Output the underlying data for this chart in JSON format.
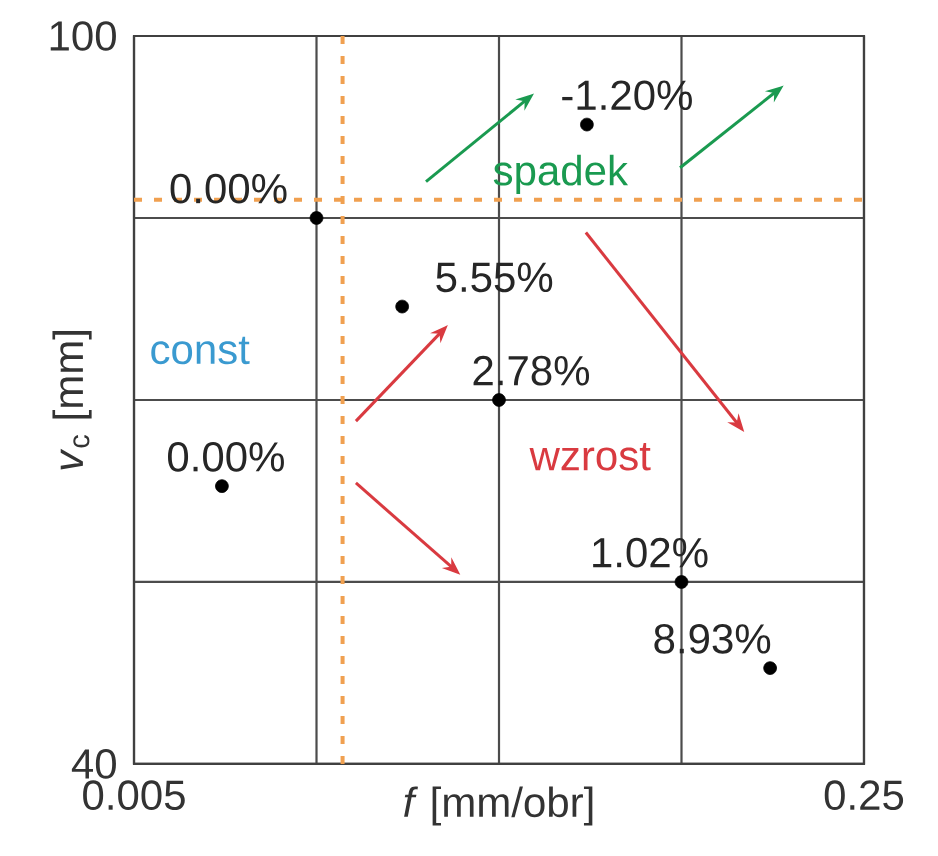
{
  "chart_data": {
    "type": "scatter",
    "xlabel": "*f* [mm/obr]",
    "ylabel": "*v*$_{c}$ [mm]",
    "xlim": [
      0.005,
      0.25
    ],
    "ylim": [
      40,
      100
    ],
    "xticks": [
      0.005,
      {
        "value": 0.06625,
        "label": null
      },
      {
        "value": 0.1275,
        "label": null
      },
      {
        "value": 0.18875,
        "label": null
      },
      0.25
    ],
    "yticks": [
      40,
      {
        "value": 55,
        "label": null
      },
      {
        "value": 70,
        "label": null
      },
      {
        "value": 85,
        "label": null
      },
      100
    ],
    "grid": true,
    "marker": "circle",
    "series": [
      {
        "color": "#000000",
        "x": [
          0.0345,
          0.06625,
          0.095,
          0.1275,
          0.157,
          0.18875,
          0.2185
        ],
        "values": [
          62.9,
          85,
          77.7,
          70,
          92.7,
          55,
          47.9
        ]
      }
    ],
    "ref_lines": [
      {
        "axis": "x",
        "value": 0.075,
        "color": "#f0a050",
        "line_style": "dashed"
      },
      {
        "axis": "y",
        "value": 86.5,
        "color": "#f0a050",
        "line_style": "dashed"
      }
    ],
    "annotations": [
      "const",
      "spadek",
      "wzrost",
      {
        "text": "0.00%",
        "x": 0.0345,
        "y": 62.9
      },
      {
        "text": "0.00%",
        "x": 0.06625,
        "y": 85
      },
      {
        "text": "5.55%",
        "x": 0.095,
        "y": 77.7
      },
      {
        "text": "2.78%",
        "x": 0.1275,
        "y": 70
      },
      {
        "text": "-1.20%",
        "x": 0.157,
        "y": 92.7
      },
      {
        "text": "1.02%",
        "x": 0.18875,
        "y": 55
      },
      {
        "text": "8.93%",
        "x": 0.2185,
        "y": 47.9
      }
    ]
  }
}
